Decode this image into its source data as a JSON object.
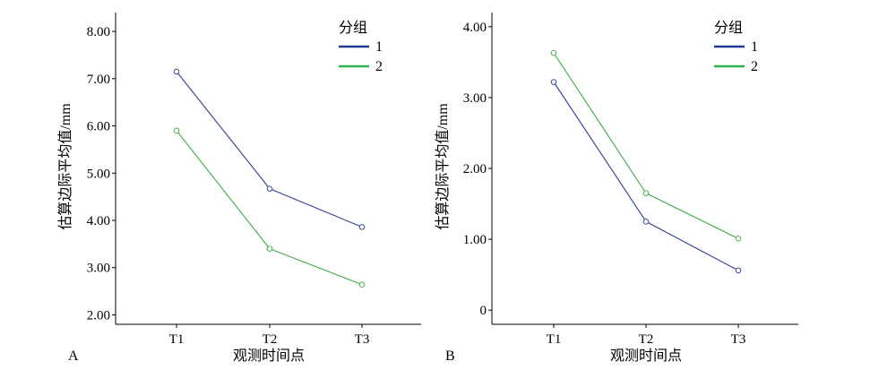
{
  "chart_data": [
    {
      "panel": "A",
      "type": "line",
      "xlabel": "观测时间点",
      "ylabel": "估算边际平均值/mm",
      "categories": [
        "T1",
        "T2",
        "T3"
      ],
      "ylim": [
        1.8,
        8.4
      ],
      "yticks": [
        "2.00",
        "3.00",
        "4.00",
        "5.00",
        "6.00",
        "7.00",
        "8.00"
      ],
      "ytick_values": [
        2,
        3,
        4,
        5,
        6,
        7,
        8
      ],
      "legend": {
        "title": "分组",
        "placement": "top-right"
      },
      "series": [
        {
          "name": "1",
          "color": "#3b4a9a",
          "values": [
            7.15,
            4.67,
            3.86
          ]
        },
        {
          "name": "2",
          "color": "#4caf50",
          "values": [
            5.9,
            3.4,
            2.64
          ]
        }
      ],
      "grid": false
    },
    {
      "panel": "B",
      "type": "line",
      "xlabel": "观测时间点",
      "ylabel": "估算边际平均值/mm",
      "categories": [
        "T1",
        "T2",
        "T3"
      ],
      "ylim": [
        -0.2,
        4.2
      ],
      "yticks": [
        "0",
        "1.00",
        "2.00",
        "3.00",
        "4.00"
      ],
      "ytick_values": [
        0,
        1,
        2,
        3,
        4
      ],
      "legend": {
        "title": "分组",
        "placement": "top-right"
      },
      "series": [
        {
          "name": "1",
          "color": "#3b4a9a",
          "values": [
            3.22,
            1.25,
            0.56
          ]
        },
        {
          "name": "2",
          "color": "#4caf50",
          "values": [
            3.63,
            1.65,
            1.01
          ]
        }
      ],
      "grid": false
    }
  ],
  "legend_line_color_1": "#1f3a93",
  "legend_line_color_2": "#2fb24a"
}
